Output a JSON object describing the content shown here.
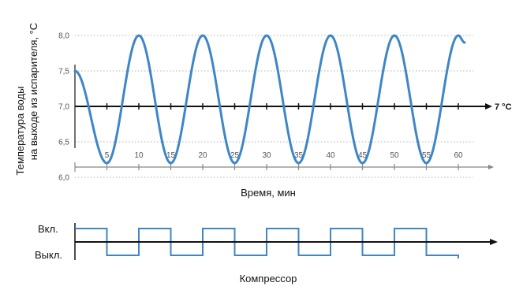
{
  "chart_data": [
    {
      "type": "line",
      "ylabel_lines": [
        "Температура воды",
        "на выходе из испарителя, °C"
      ],
      "xlabel": "Время, мин",
      "y_ticks": [
        "8,0",
        "7,5",
        "7,0",
        "6,5",
        "6,0"
      ],
      "y_tick_values": [
        8.0,
        7.5,
        7.0,
        6.5,
        6.0
      ],
      "x_ticks": [
        "5",
        "10",
        "15",
        "20",
        "25",
        "30",
        "35",
        "40",
        "45",
        "50",
        "55",
        "60"
      ],
      "x_tick_values": [
        5,
        10,
        15,
        20,
        25,
        30,
        35,
        40,
        45,
        50,
        55,
        60
      ],
      "xlim": [
        0,
        66
      ],
      "ylim": [
        5.8,
        8.2
      ],
      "reference_line": {
        "value": 7.0,
        "label": "7 °C"
      },
      "grid": "horizontal dotted",
      "series": [
        {
          "color": "#3f86c6",
          "x": [
            0,
            5,
            10,
            15,
            20,
            25,
            30,
            35,
            40,
            45,
            50,
            55,
            60,
            61
          ],
          "y": [
            7.5,
            6.2,
            8.0,
            6.2,
            8.0,
            6.2,
            8.0,
            6.2,
            8.0,
            6.2,
            8.0,
            6.2,
            8.0,
            7.9
          ]
        }
      ]
    },
    {
      "type": "step",
      "xlabel": "Компрессор",
      "state_labels": {
        "on": "Вкл.",
        "off": "Выкл."
      },
      "series": [
        {
          "color": "#3f86c6",
          "x": [
            0,
            5,
            10,
            15,
            20,
            25,
            30,
            35,
            40,
            45,
            50,
            55,
            60
          ],
          "state": [
            1,
            0,
            1,
            0,
            1,
            0,
            1,
            0,
            1,
            0,
            1,
            0
          ]
        }
      ]
    }
  ]
}
